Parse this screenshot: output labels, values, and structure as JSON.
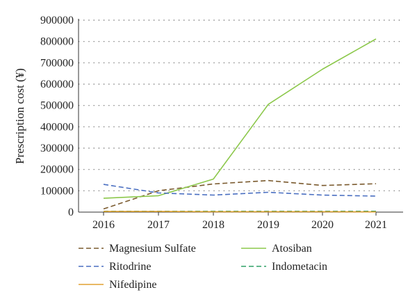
{
  "chart_data": {
    "type": "line",
    "title": "",
    "xlabel": "",
    "ylabel": "Prescription cost (¥)",
    "x": [
      "2016",
      "2017",
      "2018",
      "2019",
      "2020",
      "2021"
    ],
    "ylim": [
      0,
      900000
    ],
    "yticks": [
      "0",
      "100000",
      "200000",
      "300000",
      "400000",
      "500000",
      "600000",
      "700000",
      "800000",
      "900000"
    ],
    "grid": "horizontal-dotted",
    "legend_placement": "bottom",
    "series": [
      {
        "name": "Magnesium Sulfate",
        "values": [
          15000,
          100000,
          132000,
          148000,
          125000,
          133000
        ],
        "color": "#7a5a2e",
        "dash": "dashed"
      },
      {
        "name": "Atosiban",
        "values": [
          65000,
          77000,
          155000,
          505000,
          670000,
          812000
        ],
        "color": "#8cc84b",
        "dash": "solid"
      },
      {
        "name": "Ritodrine",
        "values": [
          130000,
          90000,
          80000,
          93000,
          80000,
          75000
        ],
        "color": "#4a6fc1",
        "dash": "dashed"
      },
      {
        "name": "Indometacin",
        "values": [
          4000,
          4000,
          4000,
          4000,
          4000,
          4000
        ],
        "color": "#2ea067",
        "dash": "dashed"
      },
      {
        "name": "Nifedipine",
        "values": [
          3000,
          3000,
          2000,
          2000,
          2000,
          1000
        ],
        "color": "#e0a030",
        "dash": "solid"
      }
    ]
  }
}
